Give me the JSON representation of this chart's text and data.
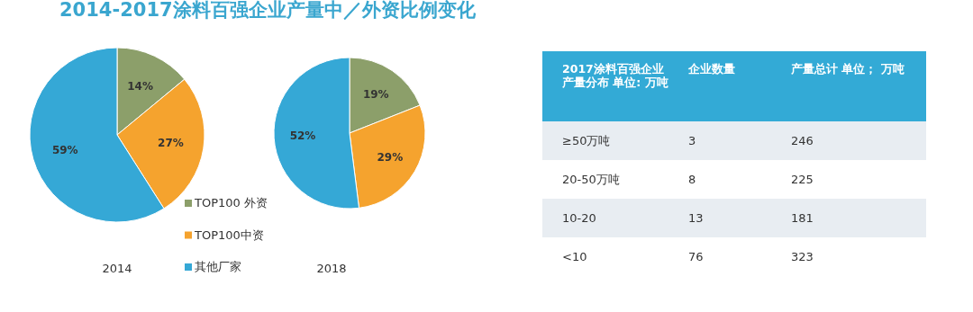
{
  "chart_data": [
    {
      "type": "pie",
      "title": "2014-2017涂料百强企业产量中／外资比例变化",
      "xlabel": "2014",
      "categories": [
        "TOP100 外资",
        "TOP100中资",
        "其他厂家"
      ],
      "values": [
        14,
        27,
        59
      ],
      "value_labels": [
        "14%",
        "27%",
        "59%"
      ],
      "colors": [
        "#8c9f6a",
        "#f5a32e",
        "#35a8d6"
      ],
      "legend": "right"
    },
    {
      "type": "pie",
      "xlabel": "2018",
      "categories": [
        null,
        null,
        null
      ],
      "values": [
        19,
        29,
        52
      ],
      "value_labels": [
        "19%",
        "29%",
        "52%"
      ],
      "colors": [
        "#8c9f6a",
        "#f5a32e",
        "#35a8d6"
      ]
    },
    {
      "type": "other",
      "annotations": [
        "2017涂料百强企业产量分布 单位: 万吨",
        "企业数量",
        "产量总计 单位； 万吨",
        "≥50万吨",
        "3",
        "246",
        "20-50万吨",
        "8",
        "225",
        "10-20",
        "13",
        "181",
        "<10",
        "76",
        "323"
      ]
    }
  ]
}
